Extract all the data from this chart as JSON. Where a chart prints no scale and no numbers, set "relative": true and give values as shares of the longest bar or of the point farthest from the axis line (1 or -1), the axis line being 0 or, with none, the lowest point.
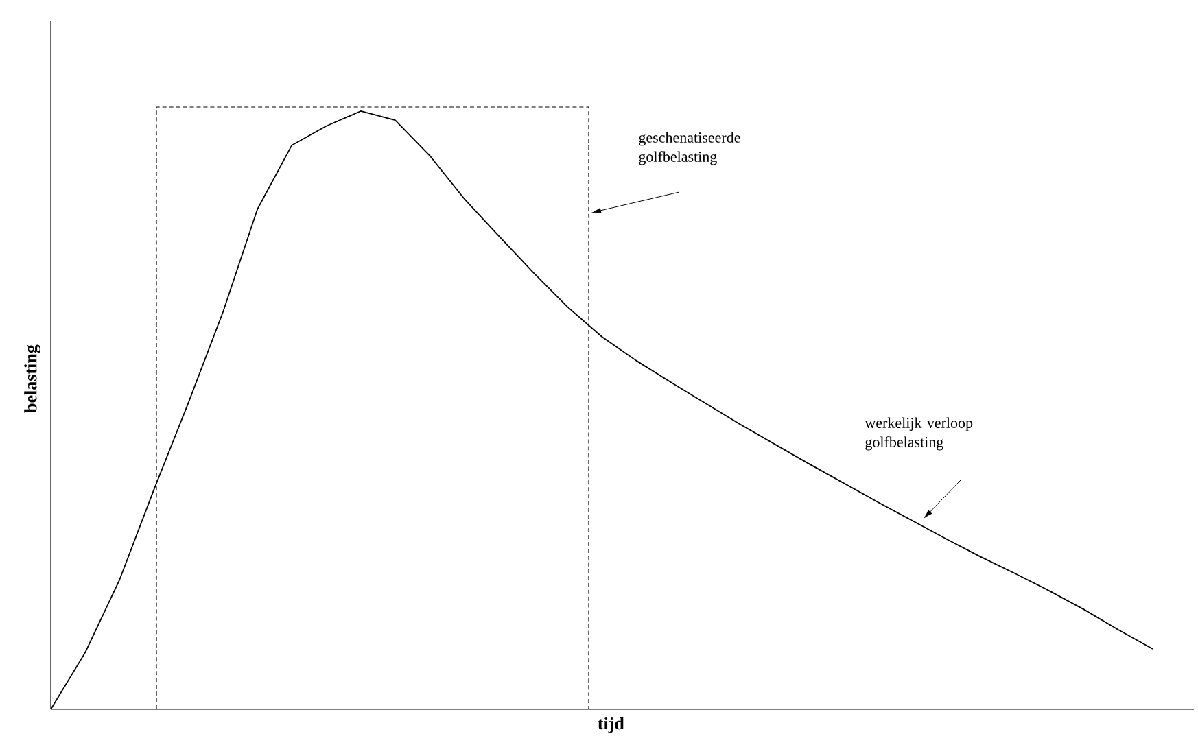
{
  "chart_data": {
    "type": "line",
    "relative": true,
    "xlabel": "tijd",
    "ylabel": "belasting",
    "tick_labels": false,
    "categories": [
      null,
      null,
      null,
      null,
      null,
      null,
      null,
      null,
      null,
      null,
      null,
      null,
      null,
      null,
      null,
      null,
      null,
      null,
      null,
      null,
      null,
      null,
      null,
      null,
      null,
      null,
      null,
      null,
      null,
      null,
      null,
      null,
      null
    ],
    "series": [
      {
        "color": "#000000",
        "line_style": "solid",
        "values": [
          0,
          0.095,
          0.217,
          0.368,
          0.513,
          0.664,
          0.836,
          0.943,
          0.975,
          1,
          0.985,
          0.926,
          0.854,
          0.792,
          0.731,
          0.673,
          0.623,
          0.583,
          0.547,
          0.512,
          0.477,
          0.444,
          0.411,
          0.379,
          0.347,
          0.316,
          0.285,
          0.255,
          0.227,
          0.198,
          0.167,
          0.133,
          0.101
        ]
      }
    ],
    "annotations": [
      "geschenatiseerde golfbelasting",
      "werkelijk verloop golfbelasting"
    ]
  }
}
